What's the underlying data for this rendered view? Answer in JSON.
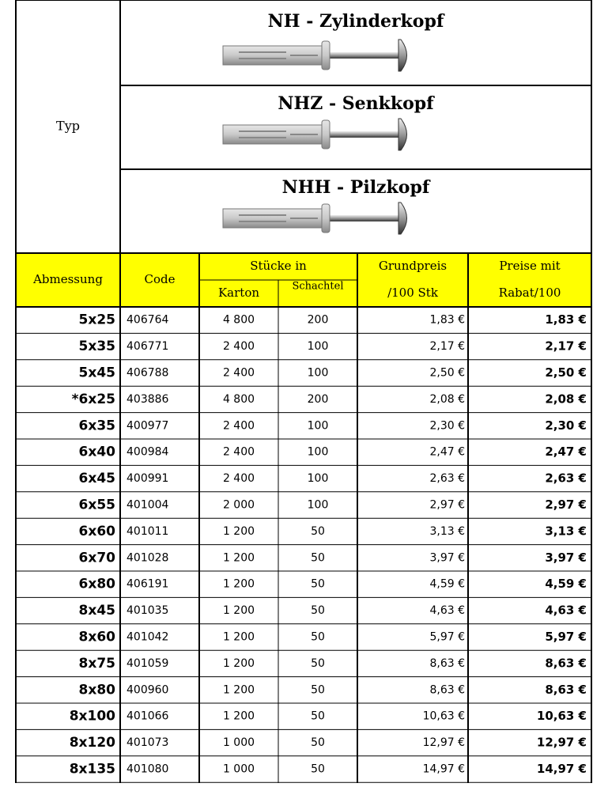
{
  "header": {
    "typ": "Typ",
    "products": [
      {
        "name": "NH - Zylinderkopf"
      },
      {
        "name": "NHZ - Senkkopf"
      },
      {
        "name": "NHH - Pilzkopf"
      }
    ],
    "columns": {
      "abmessung": "Abmessung",
      "code": "Code",
      "stuecke_in": "Stücke in",
      "karton": "Karton",
      "schachtel": "Schachtel",
      "grundpreis": [
        "Grundpreis",
        "/100 Stk"
      ],
      "preise": [
        "Preise mit",
        "Rabat/100"
      ]
    }
  },
  "rows": [
    [
      "5x25",
      "406764",
      "4 800",
      "200",
      "1,83 €",
      "1,83 €"
    ],
    [
      "5x35",
      "406771",
      "2 400",
      "100",
      "2,17 €",
      "2,17 €"
    ],
    [
      "5x45",
      "406788",
      "2 400",
      "100",
      "2,50 €",
      "2,50 €"
    ],
    [
      "*6x25",
      "403886",
      "4 800",
      "200",
      "2,08 €",
      "2,08 €"
    ],
    [
      "6x35",
      "400977",
      "2 400",
      "100",
      "2,30 €",
      "2,30 €"
    ],
    [
      "6x40",
      "400984",
      "2 400",
      "100",
      "2,47 €",
      "2,47 €"
    ],
    [
      "6x45",
      "400991",
      "2 400",
      "100",
      "2,63 €",
      "2,63 €"
    ],
    [
      "6x55",
      "401004",
      "2 000",
      "100",
      "2,97 €",
      "2,97 €"
    ],
    [
      "6x60",
      "401011",
      "1 200",
      "50",
      "3,13 €",
      "3,13 €"
    ],
    [
      "6x70",
      "401028",
      "1 200",
      "50",
      "3,97 €",
      "3,97 €"
    ],
    [
      "6x80",
      "406191",
      "1 200",
      "50",
      "4,59 €",
      "4,59 €"
    ],
    [
      "8x45",
      "401035",
      "1 200",
      "50",
      "4,63 €",
      "4,63 €"
    ],
    [
      "8x60",
      "401042",
      "1 200",
      "50",
      "5,97 €",
      "5,97 €"
    ],
    [
      "8x75",
      "401059",
      "1 200",
      "50",
      "8,63 €",
      "8,63 €"
    ],
    [
      "8x80",
      "400960",
      "1 200",
      "50",
      "8,63 €",
      "8,63 €"
    ],
    [
      "8x100",
      "401066",
      "1 200",
      "50",
      "10,63 €",
      "10,63 €"
    ],
    [
      "8x120",
      "401073",
      "1 000",
      "50",
      "12,97 €",
      "12,97 €"
    ],
    [
      "8x135",
      "401080",
      "1 000",
      "50",
      "14,97 €",
      "14,97 €"
    ]
  ]
}
